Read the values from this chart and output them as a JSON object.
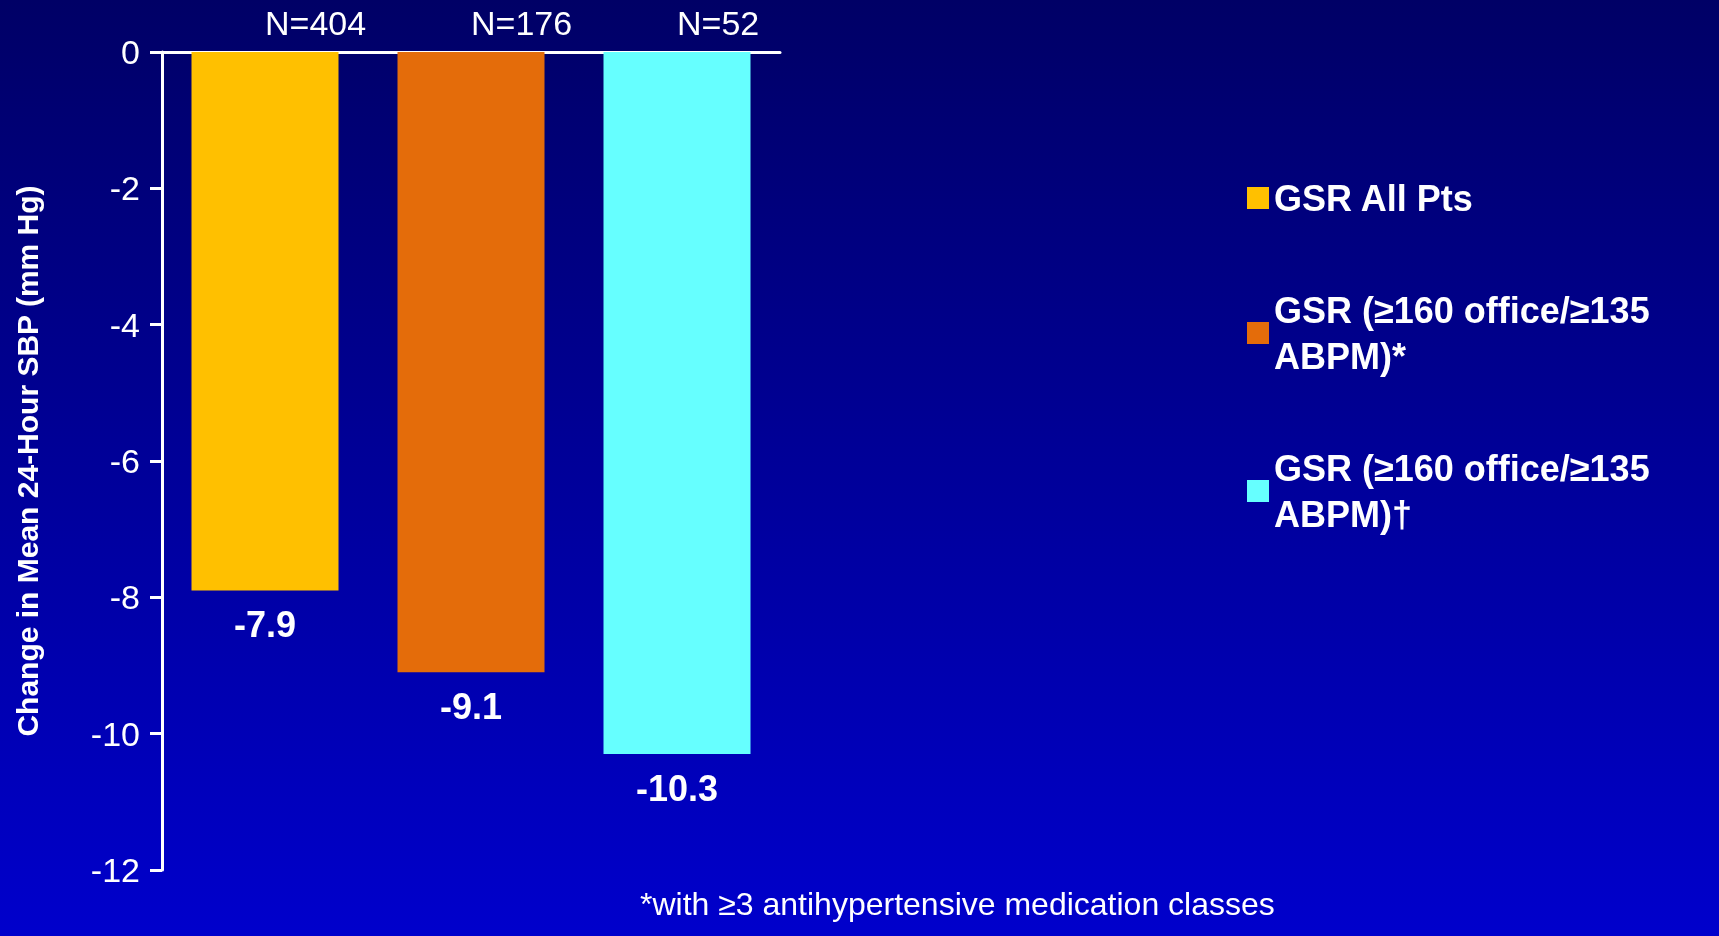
{
  "chart_data": {
    "type": "bar",
    "ylabel": "Change in Mean 24-Hour SBP (mm Hg)",
    "categories": [
      null
    ],
    "series": [
      {
        "name": "GSR All Pts",
        "color": "#ffc000",
        "values": [
          -7.9
        ]
      },
      {
        "name": "GSR (≥160 office/≥135 ABPM)*",
        "color": "#e46c0a",
        "values": [
          -9.1
        ]
      },
      {
        "name": "GSR (≥160 office/≥135 ABPM)†",
        "color": "#66ffff",
        "values": [
          -10.3
        ]
      }
    ],
    "ylim": [
      -12,
      0
    ],
    "yticks": [
      -12,
      -10,
      -8,
      -6,
      -4,
      -2,
      0
    ],
    "data_labels": true,
    "grid": false,
    "legend": "right",
    "annotations": [
      "N=404",
      "N=176",
      "N=52",
      "*with ≥3 antihypertensive medication classes"
    ]
  }
}
